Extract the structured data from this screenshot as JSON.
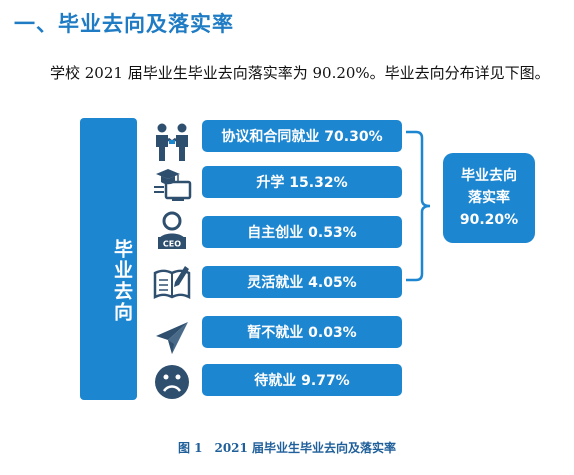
{
  "heading": "一、毕业去向及落实率",
  "intro": "学校 2021 届毕业生毕业去向落实率为 90.20%。毕业去向分布详见下图。",
  "side_label": "毕业去向",
  "items": [
    {
      "label": "协议和合同就业 70.30%",
      "icon": "handshake-icon"
    },
    {
      "label": "升学 15.32%",
      "icon": "graduate-computer-icon"
    },
    {
      "label": "自主创业 0.53%",
      "icon": "ceo-icon"
    },
    {
      "label": "灵活就业 4.05%",
      "icon": "book-pen-icon"
    },
    {
      "label": "暂不就业 0.03%",
      "icon": "paper-plane-icon"
    },
    {
      "label": "待就业 9.77%",
      "icon": "sad-face-icon"
    }
  ],
  "summary": {
    "line1": "毕业去向",
    "line2": "落实率",
    "value": "90.20%"
  },
  "ceo_text": "CEO",
  "caption": "图 1　2021 届毕业生毕业去向及落实率",
  "colors": {
    "accent": "#1c86d0",
    "heading": "#1f7cc4",
    "icon": "#2f4f6f"
  }
}
